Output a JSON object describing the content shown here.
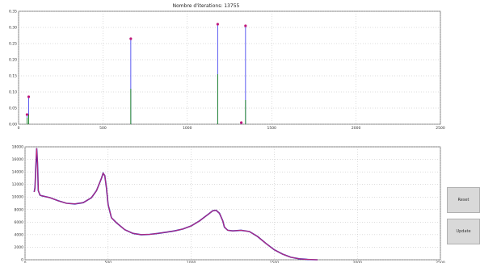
{
  "window": {
    "title": "Nombre d'iterations: 13755"
  },
  "buttons": {
    "reset_label": "Reset",
    "update_label": "Update"
  },
  "colors": {
    "line_blue": "#4a4af0",
    "line_green": "#1a8a1a",
    "point_purple": "#c0187a",
    "signal_red": "#e2306a",
    "signal_purple": "#3a1bb0"
  },
  "chart_data": [
    {
      "type": "scatter",
      "title": "Nombre d'iterations: 13755",
      "xlim": [
        0,
        2500
      ],
      "ylim": [
        0.0,
        0.35
      ],
      "x_ticks": [
        "0",
        "500",
        "1000",
        "1500",
        "2000",
        "2500"
      ],
      "y_ticks": [
        "0.00",
        "0.05",
        "0.10",
        "0.15",
        "0.20",
        "0.25",
        "0.30",
        "0.35"
      ],
      "grid": true,
      "series": [
        {
          "points": [
            {
              "x": 60,
              "y": 0.085,
              "green": 0.03
            },
            {
              "x": 665,
              "y": 0.265,
              "green": 0.11
            },
            {
              "x": 1180,
              "y": 0.31,
              "green": 0.155
            },
            {
              "x": 1320,
              "y": 0.005,
              "green": 0.0
            },
            {
              "x": 1345,
              "y": 0.305,
              "green": 0.075
            },
            {
              "x": 50,
              "y": 0.03,
              "green": 0.02
            }
          ]
        }
      ]
    },
    {
      "type": "line",
      "xlim": [
        0,
        2500
      ],
      "ylim": [
        0,
        18000
      ],
      "x_ticks": [
        "0",
        "500",
        "1000",
        "1500",
        "2000",
        "2500"
      ],
      "y_ticks": [
        "0",
        "2000",
        "4000",
        "6000",
        "8000",
        "10000",
        "12000",
        "14000",
        "16000",
        "18000"
      ],
      "grid": true,
      "series": [
        {
          "x": [
            55,
            60,
            65,
            70,
            75,
            80,
            90,
            100,
            150,
            200,
            250,
            300,
            350,
            400,
            430,
            460,
            470,
            480,
            490,
            500,
            520,
            550,
            600,
            650,
            700,
            750,
            800,
            850,
            900,
            950,
            1000,
            1050,
            1100,
            1130,
            1150,
            1170,
            1190,
            1200,
            1220,
            1250,
            1300,
            1350,
            1400,
            1450,
            1500,
            1550,
            1600,
            1650,
            1700,
            1760
          ],
          "y": [
            10800,
            11500,
            15000,
            17800,
            15500,
            11000,
            10300,
            10200,
            9900,
            9400,
            9000,
            8900,
            9100,
            9900,
            11000,
            13000,
            13800,
            13400,
            11500,
            8800,
            6700,
            5900,
            4800,
            4200,
            4000,
            4050,
            4200,
            4400,
            4600,
            4900,
            5400,
            6200,
            7200,
            7800,
            7900,
            7400,
            6200,
            5200,
            4700,
            4600,
            4700,
            4500,
            3700,
            2600,
            1600,
            900,
            400,
            150,
            50,
            0
          ]
        }
      ]
    }
  ]
}
